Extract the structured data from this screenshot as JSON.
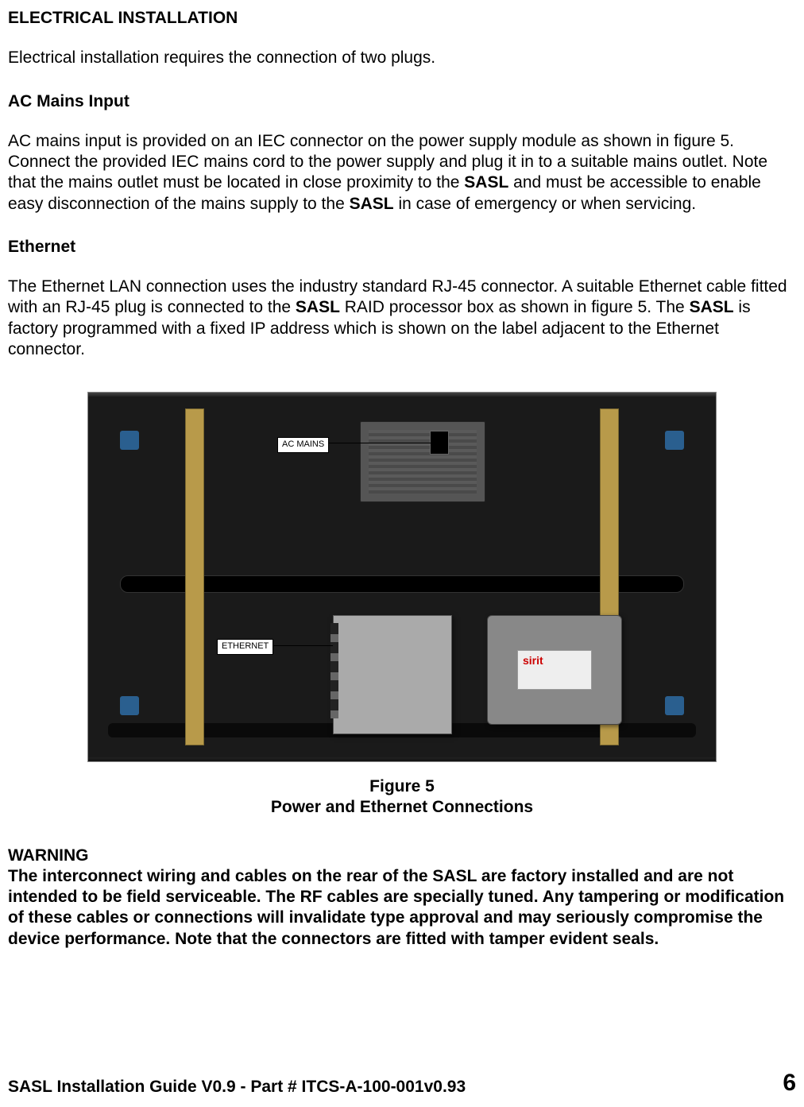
{
  "headings": {
    "main": "ELECTRICAL INSTALLATION",
    "ac_mains": "AC Mains Input",
    "ethernet": "Ethernet",
    "warning": "WARNING"
  },
  "intro_para": "Electrical installation requires the connection of two plugs.",
  "ac_mains": {
    "seg1": "AC mains input is provided on an IEC connector on the power supply module as shown in figure 5. Connect the provided IEC mains cord to the power supply and plug it in to a suitable mains outlet. Note that the mains outlet must be located in close proximity to the ",
    "bold1": "SASL",
    "seg2": " and must be accessible to enable easy disconnection of the mains supply to the ",
    "bold2": "SASL",
    "seg3": " in case of emergency or when servicing."
  },
  "ethernet": {
    "seg1": "The Ethernet LAN connection uses the industry standard RJ-45 connector. A suitable Ethernet cable fitted with an RJ-45 plug is connected to the ",
    "bold1": "SASL",
    "seg2": " RAID processor box as shown in figure 5. The ",
    "bold2": "SASL",
    "seg3": " is factory programmed with a fixed IP address which is shown on the label adjacent to the Ethernet connector."
  },
  "figure": {
    "label_ac_mains": "AC MAINS",
    "label_ethernet": "ETHERNET",
    "caption_line1": "Figure 5",
    "caption_line2": "Power and Ethernet Connections"
  },
  "warning_text": "The interconnect wiring and cables on the rear of the SASL are factory installed and are not intended to be field serviceable. The RF cables are specially tuned. Any tampering or modification of these cables or connections will invalidate type approval and may seriously compromise the device performance. Note that the connectors are fitted with tamper evident seals.",
  "footer": {
    "doc_id": "SASL Installation Guide V0.9 - Part # ITCS-A-100-001v0.93",
    "page": "6"
  },
  "colors": {
    "strut": "#b89a4a",
    "panel": "#1a1a1a",
    "psu": "#555555",
    "sirit": "#888888",
    "proc": "#aaaaaa",
    "blue": "#2a5f8f"
  }
}
